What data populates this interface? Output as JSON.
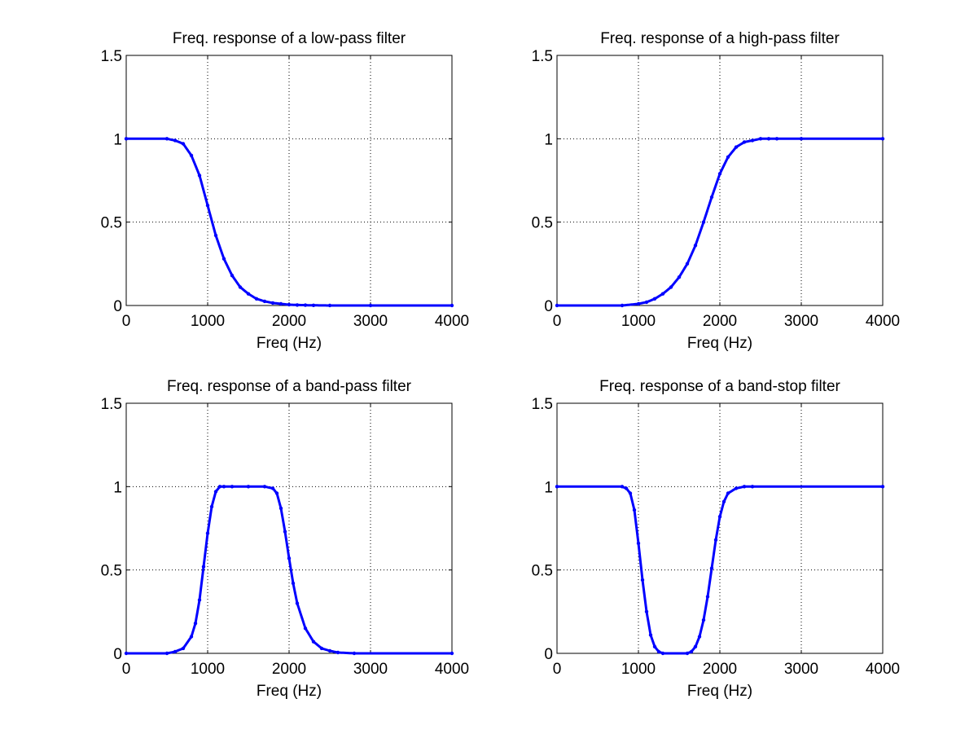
{
  "colors": {
    "series": "#0000ff",
    "axes": "#000000",
    "background": "#ffffff"
  },
  "chart_data": [
    {
      "type": "line",
      "title": "Freq. response of a low-pass filter",
      "xlabel": "Freq (Hz)",
      "ylabel": "",
      "xlim": [
        0,
        4000
      ],
      "ylim": [
        0,
        1.5
      ],
      "xticks": [
        "0",
        "1000",
        "2000",
        "3000",
        "4000"
      ],
      "yticks": [
        "0",
        "0.5",
        "1",
        "1.5"
      ],
      "grid": true,
      "series": [
        {
          "x": [
            0,
            500,
            600,
            700,
            800,
            900,
            1000,
            1100,
            1200,
            1300,
            1400,
            1500,
            1600,
            1700,
            1800,
            1900,
            2000,
            2100,
            2200,
            2300,
            2500,
            3000,
            4000
          ],
          "y": [
            1.0,
            1.0,
            0.99,
            0.97,
            0.9,
            0.78,
            0.6,
            0.42,
            0.28,
            0.18,
            0.11,
            0.07,
            0.04,
            0.025,
            0.015,
            0.01,
            0.005,
            0.003,
            0.002,
            0.001,
            0.0,
            0.0,
            0.0
          ]
        }
      ]
    },
    {
      "type": "line",
      "title": "Freq. response of a high-pass filter",
      "xlabel": "Freq (Hz)",
      "ylabel": "",
      "xlim": [
        0,
        4000
      ],
      "ylim": [
        0,
        1.5
      ],
      "xticks": [
        "0",
        "1000",
        "2000",
        "3000",
        "4000"
      ],
      "yticks": [
        "0",
        "0.5",
        "1",
        "1.5"
      ],
      "grid": true,
      "series": [
        {
          "x": [
            0,
            800,
            1000,
            1100,
            1200,
            1300,
            1400,
            1500,
            1600,
            1700,
            1800,
            1900,
            2000,
            2100,
            2200,
            2300,
            2400,
            2500,
            2600,
            2700,
            3000,
            4000
          ],
          "y": [
            0.0,
            0.0,
            0.01,
            0.02,
            0.04,
            0.07,
            0.11,
            0.17,
            0.25,
            0.36,
            0.5,
            0.65,
            0.79,
            0.89,
            0.95,
            0.98,
            0.99,
            1.0,
            1.0,
            1.0,
            1.0,
            1.0
          ]
        }
      ]
    },
    {
      "type": "line",
      "title": "Freq. response of a band-pass filter",
      "xlabel": "Freq (Hz)",
      "ylabel": "",
      "xlim": [
        0,
        4000
      ],
      "ylim": [
        0,
        1.5
      ],
      "xticks": [
        "0",
        "1000",
        "2000",
        "3000",
        "4000"
      ],
      "yticks": [
        "0",
        "0.5",
        "1",
        "1.5"
      ],
      "grid": true,
      "series": [
        {
          "x": [
            0,
            500,
            600,
            700,
            800,
            850,
            900,
            950,
            1000,
            1050,
            1100,
            1150,
            1200,
            1300,
            1500,
            1700,
            1800,
            1850,
            1900,
            1950,
            2000,
            2050,
            2100,
            2200,
            2300,
            2400,
            2500,
            2600,
            2800,
            4000
          ],
          "y": [
            0.0,
            0.0,
            0.01,
            0.03,
            0.1,
            0.18,
            0.32,
            0.52,
            0.72,
            0.88,
            0.97,
            1.0,
            1.0,
            1.0,
            1.0,
            1.0,
            0.99,
            0.96,
            0.87,
            0.73,
            0.57,
            0.42,
            0.3,
            0.15,
            0.07,
            0.03,
            0.015,
            0.005,
            0.0,
            0.0
          ]
        }
      ]
    },
    {
      "type": "line",
      "title": "Freq. response of a band-stop filter",
      "xlabel": "Freq (Hz)",
      "ylabel": "",
      "xlim": [
        0,
        4000
      ],
      "ylim": [
        0,
        1.5
      ],
      "xticks": [
        "0",
        "1000",
        "2000",
        "3000",
        "4000"
      ],
      "yticks": [
        "0",
        "0.5",
        "1",
        "1.5"
      ],
      "grid": true,
      "series": [
        {
          "x": [
            0,
            800,
            850,
            900,
            950,
            1000,
            1050,
            1100,
            1150,
            1200,
            1250,
            1300,
            1600,
            1650,
            1700,
            1750,
            1800,
            1850,
            1900,
            1950,
            2000,
            2050,
            2100,
            2200,
            2300,
            2400,
            4000
          ],
          "y": [
            1.0,
            1.0,
            0.99,
            0.96,
            0.86,
            0.66,
            0.44,
            0.25,
            0.11,
            0.04,
            0.01,
            0.0,
            0.0,
            0.01,
            0.04,
            0.1,
            0.2,
            0.34,
            0.51,
            0.68,
            0.82,
            0.91,
            0.96,
            0.99,
            1.0,
            1.0,
            1.0
          ]
        }
      ]
    }
  ]
}
